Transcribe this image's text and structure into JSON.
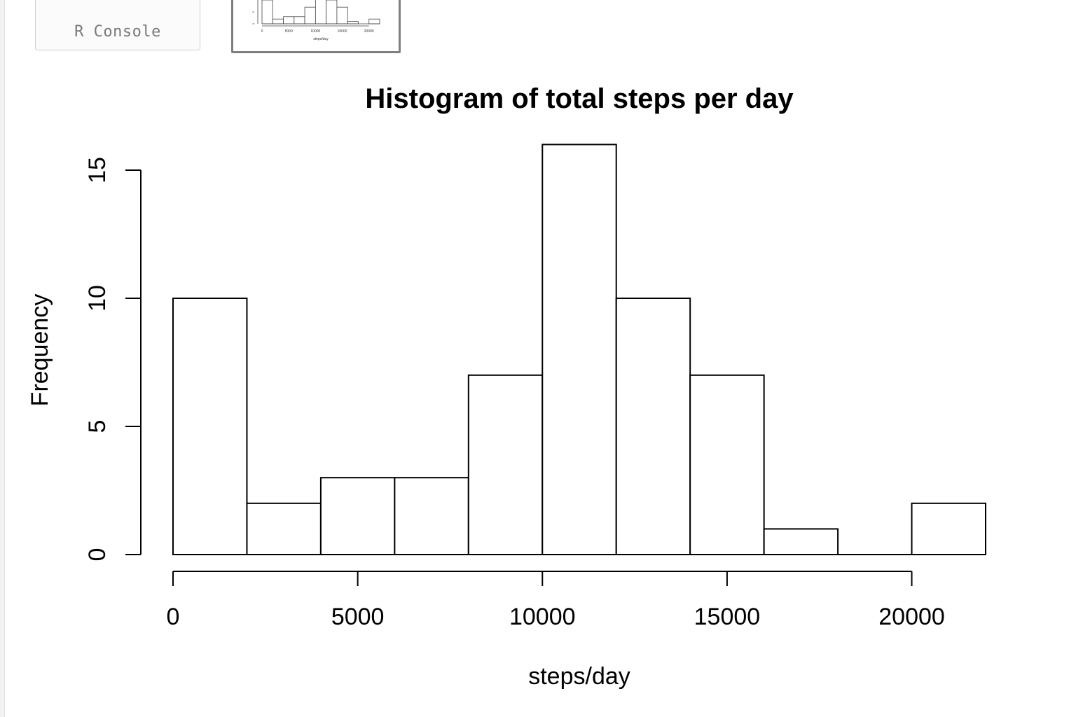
{
  "tabs": {
    "console_label": "R Console"
  },
  "chart_data": {
    "type": "bar",
    "title": "Histogram of total steps per day",
    "xlabel": "steps/day",
    "ylabel": "Frequency",
    "bins": [
      {
        "start": 0,
        "end": 2000,
        "count": 10
      },
      {
        "start": 2000,
        "end": 4000,
        "count": 2
      },
      {
        "start": 4000,
        "end": 6000,
        "count": 3
      },
      {
        "start": 6000,
        "end": 8000,
        "count": 3
      },
      {
        "start": 8000,
        "end": 10000,
        "count": 7
      },
      {
        "start": 10000,
        "end": 12000,
        "count": 16
      },
      {
        "start": 12000,
        "end": 14000,
        "count": 10
      },
      {
        "start": 14000,
        "end": 16000,
        "count": 7
      },
      {
        "start": 16000,
        "end": 18000,
        "count": 1
      },
      {
        "start": 18000,
        "end": 20000,
        "count": 0
      },
      {
        "start": 20000,
        "end": 22000,
        "count": 2
      }
    ],
    "x_ticks": [
      0,
      5000,
      10000,
      15000,
      20000
    ],
    "y_ticks": [
      0,
      5,
      10,
      15
    ],
    "xlim": [
      0,
      22000
    ],
    "ylim": [
      0,
      16
    ],
    "grid": false,
    "legend": false,
    "colors": {
      "bar_fill": "#ffffff",
      "bar_stroke": "#000000"
    }
  },
  "thumbnail": {
    "xlabel": "steps/day",
    "x_ticks": [
      0,
      5000,
      10000,
      15000,
      20000
    ],
    "y_ticks": [
      0,
      5
    ]
  }
}
